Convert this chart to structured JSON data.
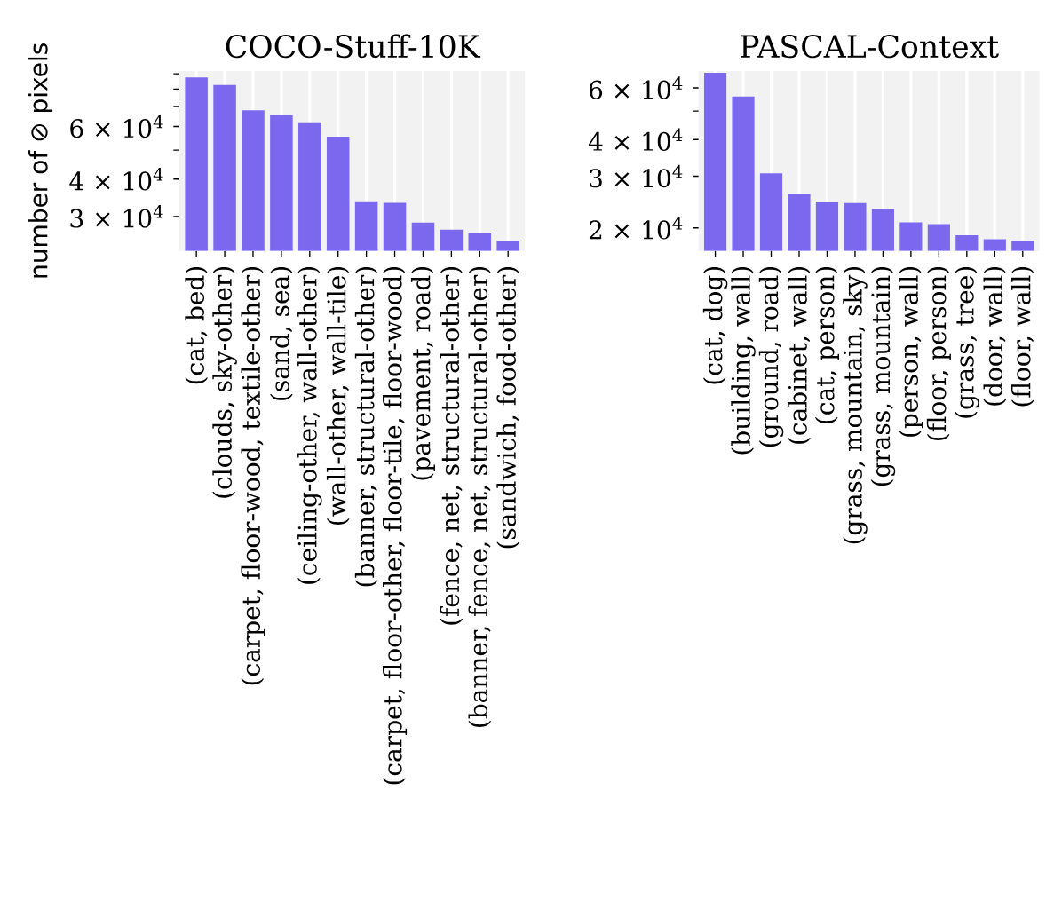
{
  "chart_data": [
    {
      "type": "bar",
      "title": "COCO-Stuff-10K",
      "ylabel": "number of ⊘ pixels",
      "color": "#7b68ee",
      "log": true,
      "grid": "x",
      "categories": [
        "(cat, bed)",
        "(clouds, sky-other)",
        "(carpet, floor-wood, textile-other)",
        "(sand, sea)",
        "(ceiling-other, wall-other)",
        "(wall-other, wall-tile)",
        "(banner, structural-other)",
        "(carpet, floor-other, floor-tile, floor-wood)",
        "(pavement, road)",
        "(fence, net, structural-other)",
        "(banner, fence, net, structural-other)",
        "(sandwich, food-other)"
      ],
      "values": [
        87500,
        82600,
        68000,
        65300,
        62000,
        55500,
        33700,
        33300,
        28600,
        27100,
        26300,
        24900
      ],
      "ylim": [
        23000,
        92000
      ],
      "yticks": [
        {
          "value": 30000,
          "label": "3 × 10$^{4}$"
        },
        {
          "value": 40000,
          "label": "4 × 10$^{4}$"
        },
        {
          "value": 50000,
          "label": null
        },
        {
          "value": 60000,
          "label": "6 × 10$^{4}$"
        },
        {
          "value": 70000,
          "label": null
        },
        {
          "value": 80000,
          "label": null
        },
        {
          "value": 90000,
          "label": null
        }
      ]
    },
    {
      "type": "bar",
      "title": "PASCAL-Context",
      "color": "#7b68ee",
      "log": true,
      "grid": "x",
      "categories": [
        "(cat, dog)",
        "(building, wall)",
        "(ground, road)",
        "(cabinet, wall)",
        "(cat, person)",
        "(grass, mountain, sky)",
        "(grass, mountain)",
        "(person, wall)",
        "(floor, person)",
        "(grass, tree)",
        "(door, wall)",
        "(floor, wall)"
      ],
      "values": [
        67500,
        56100,
        30700,
        26100,
        24600,
        24300,
        23200,
        20900,
        20600,
        18900,
        18300,
        18100
      ],
      "ylim": [
        16700,
        68500
      ],
      "yticks": [
        {
          "value": 20000,
          "label": "2 × 10$^{4}$"
        },
        {
          "value": 30000,
          "label": "3 × 10$^{4}$"
        },
        {
          "value": 40000,
          "label": "4 × 10$^{4}$"
        },
        {
          "value": 50000,
          "label": null
        },
        {
          "value": 60000,
          "label": "6 × 10$^{4}$"
        }
      ]
    }
  ]
}
